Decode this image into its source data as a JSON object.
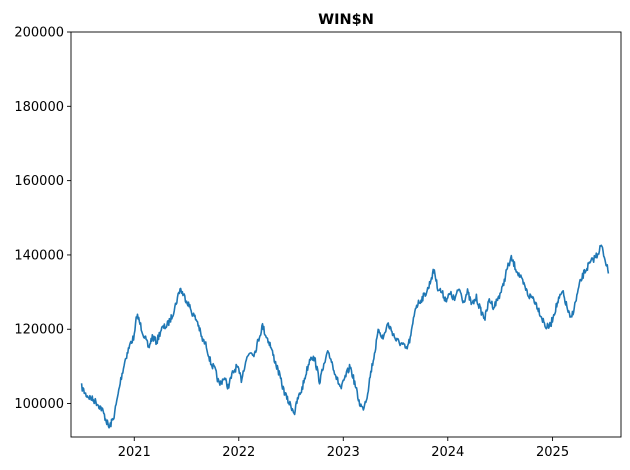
{
  "chart_data": {
    "type": "line",
    "title": "WIN$N",
    "xlabel": "",
    "ylabel": "",
    "x_tick_labels": [
      "2021",
      "2022",
      "2023",
      "2024",
      "2025"
    ],
    "x_tick_dates": [
      "2021-01-01",
      "2022-01-01",
      "2023-01-01",
      "2024-01-01",
      "2025-01-01"
    ],
    "xlim": [
      "2020-05-25",
      "2025-08-28"
    ],
    "y_tick_labels": [
      "100000",
      "120000",
      "140000",
      "160000",
      "180000",
      "200000"
    ],
    "y_ticks": [
      100000,
      120000,
      140000,
      160000,
      180000,
      200000
    ],
    "ylim": [
      91000,
      200000
    ],
    "grid": false,
    "legend": "none",
    "series": [
      {
        "color": "#1f77b4",
        "x": [
          "2020-07-01",
          "2020-07-15",
          "2020-08-01",
          "2020-08-20",
          "2020-09-10",
          "2020-09-25",
          "2020-10-05",
          "2020-10-20",
          "2020-11-01",
          "2020-11-15",
          "2020-12-01",
          "2020-12-20",
          "2021-01-01",
          "2021-01-10",
          "2021-02-01",
          "2021-02-20",
          "2021-03-05",
          "2021-03-20",
          "2021-04-05",
          "2021-04-25",
          "2021-05-10",
          "2021-05-25",
          "2021-06-10",
          "2021-06-20",
          "2021-07-05",
          "2021-07-25",
          "2021-08-10",
          "2021-08-25",
          "2021-09-10",
          "2021-09-25",
          "2021-10-10",
          "2021-10-25",
          "2021-11-10",
          "2021-11-25",
          "2021-12-10",
          "2021-12-25",
          "2022-01-10",
          "2022-01-25",
          "2022-02-10",
          "2022-02-25",
          "2022-03-10",
          "2022-03-25",
          "2022-04-05",
          "2022-04-20",
          "2022-05-05",
          "2022-05-20",
          "2022-06-05",
          "2022-06-20",
          "2022-07-05",
          "2022-07-15",
          "2022-07-25",
          "2022-08-10",
          "2022-08-25",
          "2022-09-10",
          "2022-09-25",
          "2022-10-10",
          "2022-10-25",
          "2022-11-10",
          "2022-11-25",
          "2022-12-10",
          "2022-12-25",
          "2023-01-10",
          "2023-01-25",
          "2023-02-10",
          "2023-02-25",
          "2023-03-10",
          "2023-03-25",
          "2023-04-05",
          "2023-04-20",
          "2023-05-05",
          "2023-05-20",
          "2023-06-05",
          "2023-06-20",
          "2023-07-05",
          "2023-07-25",
          "2023-08-10",
          "2023-08-25",
          "2023-09-10",
          "2023-09-25",
          "2023-10-10",
          "2023-10-25",
          "2023-11-05",
          "2023-11-15",
          "2023-11-25",
          "2023-12-10",
          "2023-12-25",
          "2024-01-10",
          "2024-01-25",
          "2024-02-10",
          "2024-02-25",
          "2024-03-10",
          "2024-03-25",
          "2024-04-10",
          "2024-04-25",
          "2024-05-10",
          "2024-05-25",
          "2024-06-10",
          "2024-06-25",
          "2024-07-10",
          "2024-07-25",
          "2024-08-10",
          "2024-08-25",
          "2024-09-10",
          "2024-09-25",
          "2024-10-10",
          "2024-10-25",
          "2024-11-10",
          "2024-11-25",
          "2024-12-10",
          "2024-12-25",
          "2025-01-05",
          "2025-01-20",
          "2025-02-05",
          "2025-02-20",
          "2025-03-05",
          "2025-03-20",
          "2025-04-05",
          "2025-04-20",
          "2025-05-05",
          "2025-05-20",
          "2025-06-05",
          "2025-06-20",
          "2025-07-05",
          "2025-07-15"
        ],
        "y": [
          104500,
          102500,
          101500,
          100500,
          98500,
          95500,
          93500,
          96000,
          100500,
          106500,
          112000,
          116500,
          118000,
          124000,
          119000,
          115000,
          118000,
          116500,
          120000,
          121000,
          123000,
          126500,
          131000,
          129500,
          127500,
          124000,
          122000,
          117500,
          115500,
          111000,
          109000,
          105000,
          107000,
          104500,
          108000,
          110000,
          106500,
          111500,
          114000,
          113500,
          117000,
          121000,
          118500,
          116000,
          112000,
          108500,
          104000,
          101000,
          99000,
          97500,
          101000,
          104000,
          108500,
          113000,
          111500,
          106000,
          110000,
          114000,
          110500,
          106500,
          104000,
          107500,
          110000,
          105500,
          100500,
          98500,
          102000,
          107500,
          113500,
          120000,
          117500,
          121500,
          119500,
          117000,
          116000,
          114500,
          118000,
          126000,
          127500,
          129000,
          131000,
          134000,
          136000,
          131500,
          130000,
          128000,
          129500,
          128000,
          131000,
          127500,
          130000,
          126500,
          128500,
          125000,
          123000,
          128000,
          126000,
          128500,
          131000,
          136000,
          139000,
          136500,
          134000,
          131500,
          129000,
          128500,
          126000,
          123000,
          120500,
          121000,
          124000,
          127500,
          130000,
          126000,
          122500,
          126500,
          132000,
          135000,
          137000,
          138500,
          140000,
          142500,
          138500,
          135000
        ]
      }
    ]
  }
}
